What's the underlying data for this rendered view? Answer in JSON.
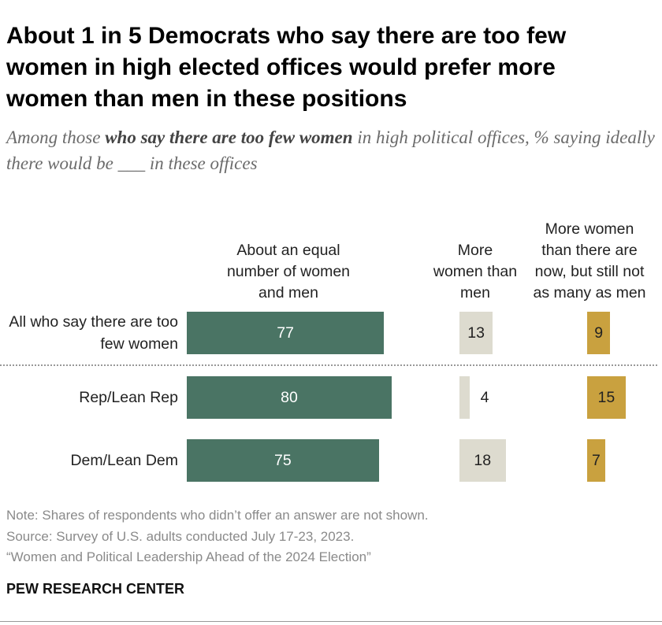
{
  "chart_data": {
    "type": "bar",
    "title": "About 1 in 5 Democrats who say there are too few women in high elected offices would prefer more women than men in these positions",
    "subtitle": [
      {
        "text": "Among those ",
        "bold": false
      },
      {
        "text": "who say there are too few women",
        "bold": true
      },
      {
        "text": " in high political offices, % saying ideally there would be ___ in these offices",
        "bold": false
      }
    ],
    "categories": [
      "All who say there are too few women",
      "Rep/Lean Rep",
      "Dem/Lean Dem"
    ],
    "series": [
      {
        "name": "About an equal number of women and men",
        "color": "#4a7464",
        "values": [
          77,
          80,
          75
        ]
      },
      {
        "name": "More women than men",
        "color": "#dddbcf",
        "values": [
          13,
          4,
          18
        ]
      },
      {
        "name": "More women than there are now, but still not as many as men",
        "color": "#c9a13f",
        "values": [
          9,
          15,
          7
        ]
      }
    ],
    "note": "Note: Shares of respondents who didn’t offer an answer are not shown.",
    "source": "Source: Survey of U.S. adults conducted July 17-23, 2023.",
    "report": "“Women and Political Leadership Ahead of the 2024 Election”",
    "brand": "PEW RESEARCH CENTER"
  }
}
